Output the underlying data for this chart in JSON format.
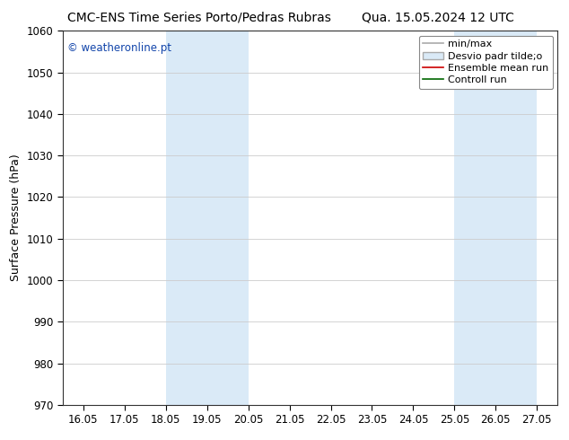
{
  "title_left": "CMC-ENS Time Series Porto/Pedras Rubras",
  "title_right": "Qua. 15.05.2024 12 UTC",
  "ylabel": "Surface Pressure (hPa)",
  "ylim": [
    970,
    1060
  ],
  "yticks": [
    970,
    980,
    990,
    1000,
    1010,
    1020,
    1030,
    1040,
    1050,
    1060
  ],
  "xlim": [
    0,
    11
  ],
  "xtick_labels": [
    "16.05",
    "17.05",
    "18.05",
    "19.05",
    "20.05",
    "21.05",
    "22.05",
    "23.05",
    "24.05",
    "25.05",
    "26.05",
    "27.05"
  ],
  "xtick_positions": [
    0,
    1,
    2,
    3,
    4,
    5,
    6,
    7,
    8,
    9,
    10,
    11
  ],
  "shaded_bands": [
    {
      "xmin": 2,
      "xmax": 4,
      "color": "#daeaf7"
    },
    {
      "xmin": 9,
      "xmax": 11,
      "color": "#daeaf7"
    }
  ],
  "watermark_text": "© weatheronline.pt",
  "watermark_color": "#1144aa",
  "legend_entries": [
    {
      "label": "min/max",
      "color": "#aaaaaa",
      "lw": 1.2,
      "type": "hline"
    },
    {
      "label": "Desvio padr tilde;o",
      "facecolor": "#daeaf7",
      "edgecolor": "#aaaaaa",
      "type": "box"
    },
    {
      "label": "Ensemble mean run",
      "color": "#cc0000",
      "lw": 1.2,
      "type": "line"
    },
    {
      "label": "Controll run",
      "color": "#006600",
      "lw": 1.2,
      "type": "line"
    }
  ],
  "background_color": "#ffffff",
  "grid_color": "#cccccc",
  "title_fontsize": 10,
  "label_fontsize": 9,
  "tick_fontsize": 8.5,
  "legend_fontsize": 8
}
